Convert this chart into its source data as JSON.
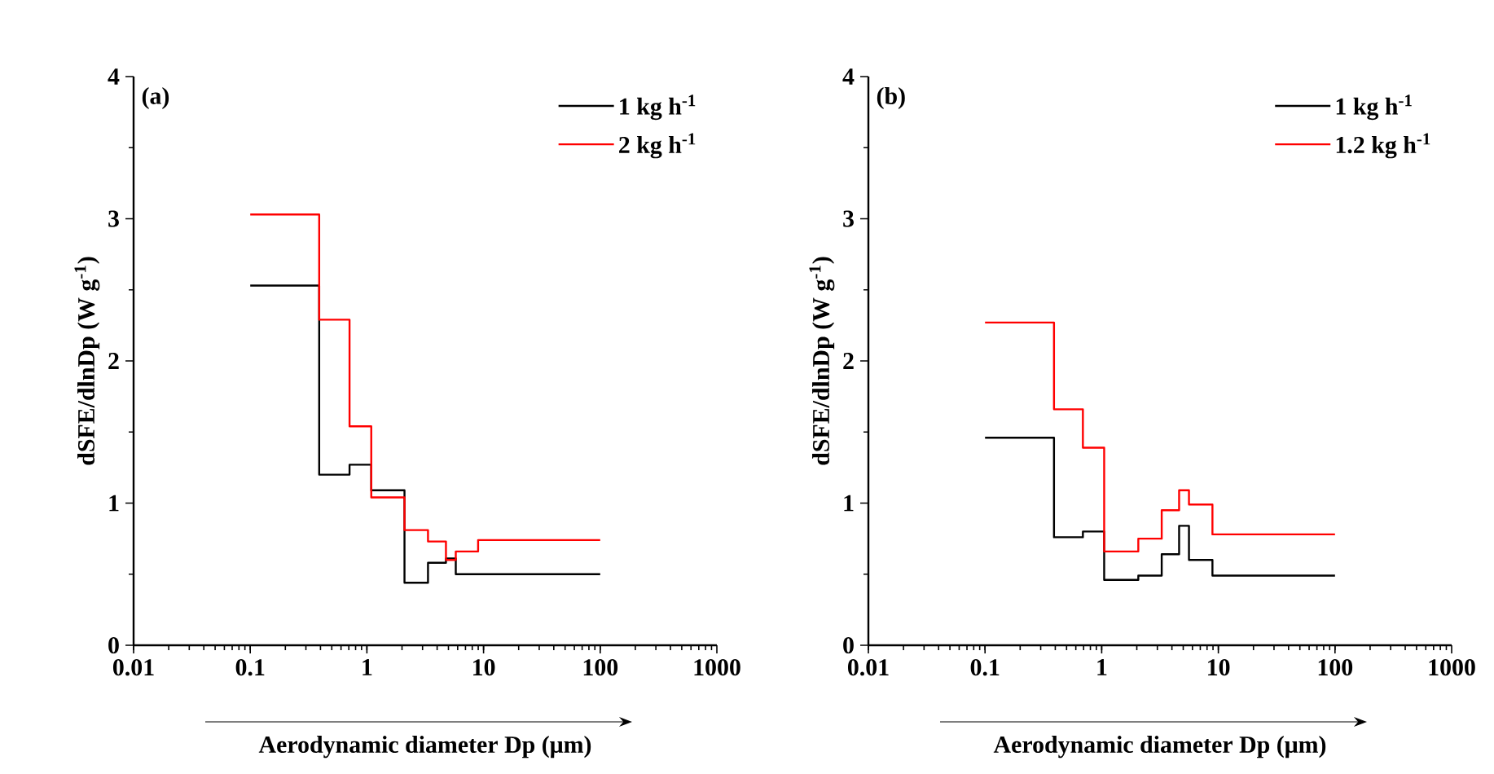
{
  "chart_data": [
    {
      "type": "step",
      "annotations": [
        "(a)"
      ],
      "xlabel": "Aerodynamic diameter Dp (μm)",
      "ylabel": "dSFE/dlnDp (W g$^{-1}$)",
      "log": "x",
      "legend": "top right",
      "xlim": [
        0.01,
        1000
      ],
      "xticks": [
        0.01,
        0.1,
        1,
        10,
        100,
        1000
      ],
      "ylim": [
        0,
        4
      ],
      "yticks": [
        0,
        1,
        2,
        3,
        4
      ],
      "x": [
        0.1,
        0.39,
        0.71,
        1.09,
        2.1,
        3.34,
        4.76,
        5.78,
        8.98,
        100
      ],
      "series": [
        {
          "name": "1 kg h$^{-1}$",
          "color": "#000000",
          "values": [
            2.53,
            1.2,
            1.27,
            1.09,
            0.44,
            0.58,
            0.61,
            0.5,
            0.5,
            0.5
          ]
        },
        {
          "name": "2 kg h$^{-1}$",
          "color": "#ff0000",
          "values": [
            3.03,
            2.29,
            1.54,
            1.04,
            0.81,
            0.73,
            0.6,
            0.66,
            0.74,
            0.74
          ]
        }
      ]
    },
    {
      "type": "step",
      "annotations": [
        "(b)"
      ],
      "xlabel": "Aerodynamic diameter Dp (μm)",
      "ylabel": "dSFE/dlnDp (W g$^{-1}$)",
      "log": "x",
      "legend": "top right",
      "xlim": [
        0.01,
        1000
      ],
      "xticks": [
        0.01,
        0.1,
        1,
        10,
        100,
        1000
      ],
      "ylim": [
        0,
        4
      ],
      "yticks": [
        0,
        1,
        2,
        3,
        4
      ],
      "x": [
        0.1,
        0.39,
        0.69,
        1.05,
        2.06,
        3.27,
        4.61,
        5.6,
        8.9,
        100
      ],
      "series": [
        {
          "name": "1 kg h$^{-1}$",
          "color": "#000000",
          "values": [
            1.46,
            0.76,
            0.8,
            0.46,
            0.49,
            0.64,
            0.84,
            0.6,
            0.49,
            0.49
          ]
        },
        {
          "name": "1.2 kg h$^{-1}$",
          "color": "#ff0000",
          "values": [
            2.27,
            1.66,
            1.39,
            0.66,
            0.75,
            0.95,
            1.09,
            0.99,
            0.78,
            0.78
          ]
        }
      ]
    }
  ]
}
